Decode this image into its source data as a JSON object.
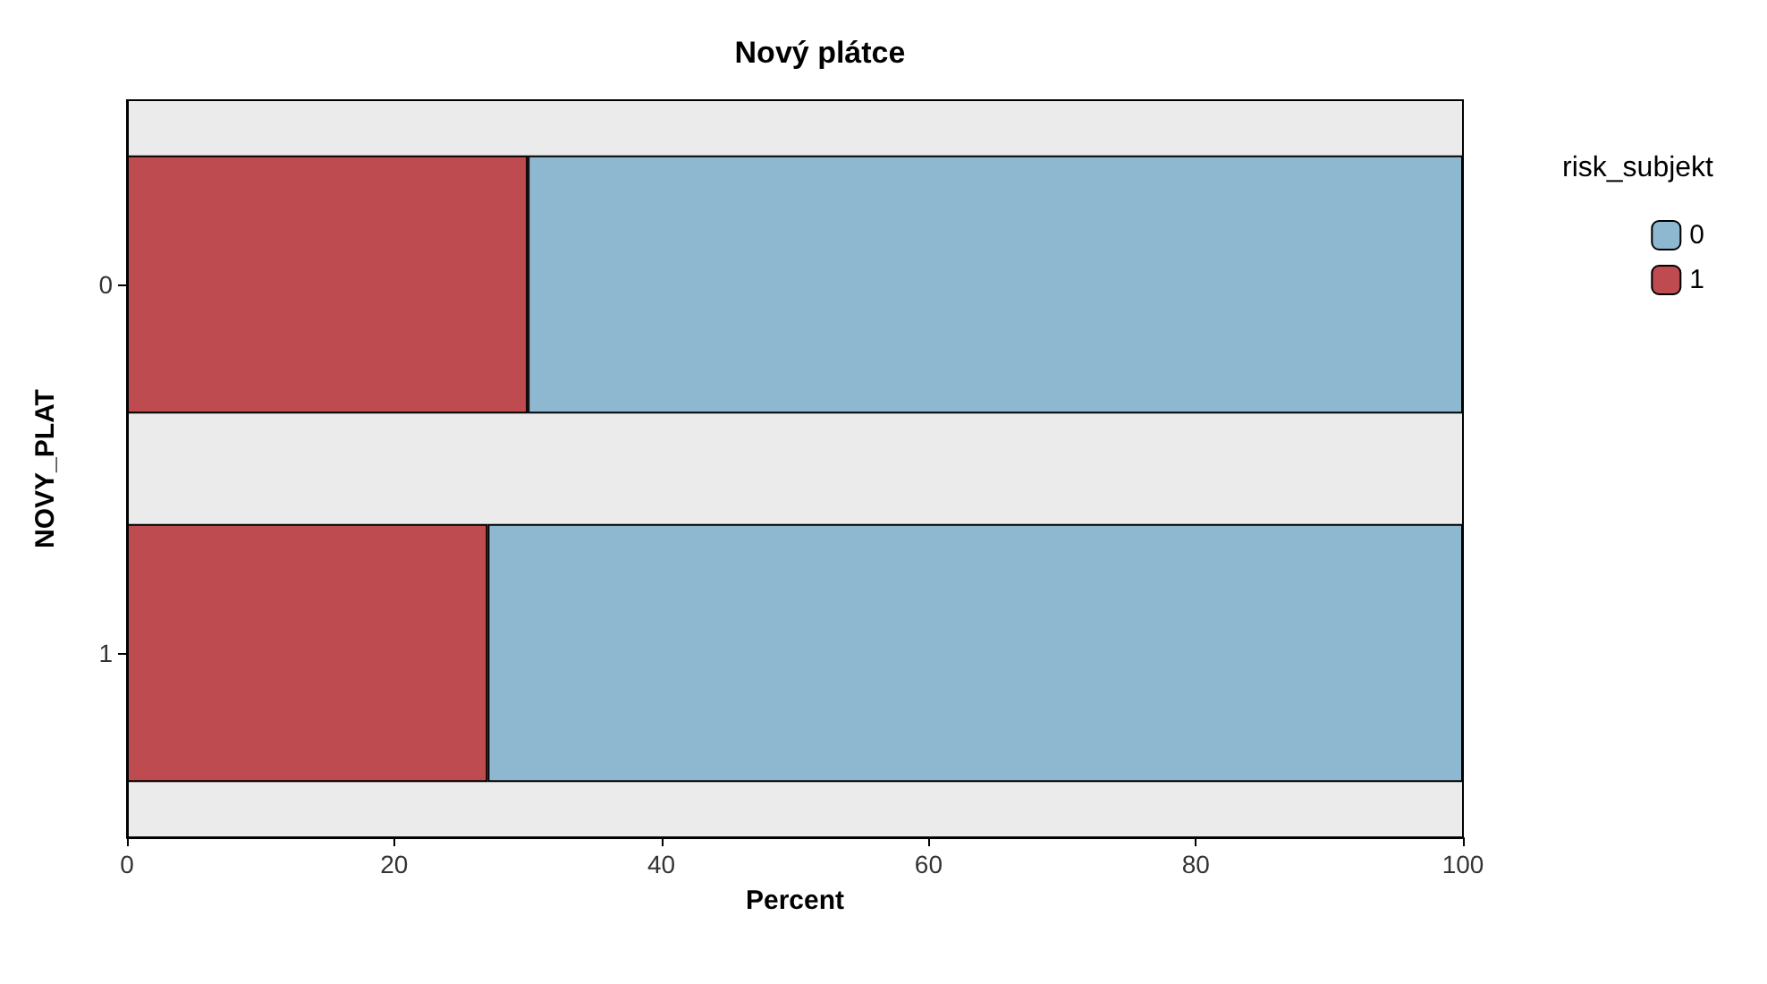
{
  "chart_data": {
    "type": "bar",
    "title": "Nový plátce",
    "xlabel": "Percent",
    "ylabel": "NOVY_PLAT",
    "legend_title": "risk_subjekt",
    "orientation": "horizontal",
    "stacked": true,
    "categories": [
      "0",
      "1"
    ],
    "series": [
      {
        "name": "1",
        "color": "#bd4b4f",
        "values": [
          30,
          27
        ]
      },
      {
        "name": "0",
        "color": "#8db8d0",
        "values": [
          70,
          73
        ]
      }
    ],
    "xlim": [
      0,
      100
    ],
    "xticks": [
      0,
      20,
      40,
      60,
      80,
      100
    ],
    "grid": false,
    "legend": "right"
  }
}
